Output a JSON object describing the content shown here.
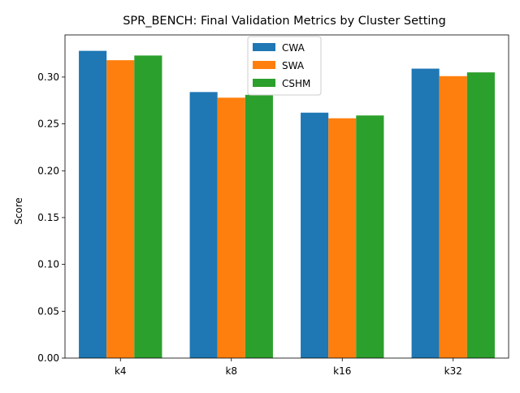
{
  "chart_data": {
    "type": "bar",
    "title": "SPR_BENCH: Final Validation Metrics by Cluster Setting",
    "xlabel": "",
    "ylabel": "Score",
    "categories": [
      "k4",
      "k8",
      "k16",
      "k32"
    ],
    "series": [
      {
        "name": "CWA",
        "color": "#1f77b4",
        "values": [
          0.328,
          0.284,
          0.262,
          0.309
        ]
      },
      {
        "name": "SWA",
        "color": "#ff7f0e",
        "values": [
          0.318,
          0.278,
          0.256,
          0.301
        ]
      },
      {
        "name": "CSHM",
        "color": "#2ca02c",
        "values": [
          0.323,
          0.281,
          0.259,
          0.305
        ]
      }
    ],
    "ylim": [
      0,
      0.345
    ],
    "yticks": [
      "0.00",
      "0.05",
      "0.10",
      "0.15",
      "0.20",
      "0.25",
      "0.30"
    ],
    "grid": false,
    "legend_position": "top-center"
  }
}
